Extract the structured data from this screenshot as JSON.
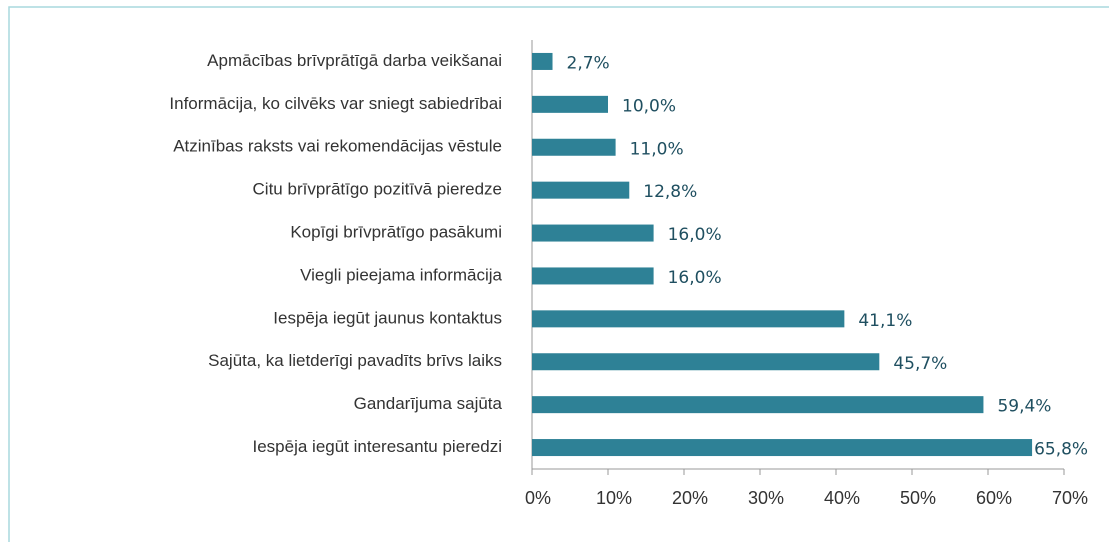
{
  "chart_data": {
    "type": "bar",
    "orientation": "horizontal",
    "color": "#2e8196",
    "categories": [
      "Apmācības brīvprātīgā darba veikšanai",
      "Informācija, ko cilvēks var sniegt sabiedrībai",
      "Atzinības raksts vai rekomendācijas vēstule",
      "Citu brīvprātīgo pozitīvā pieredze",
      "Kopīgi brīvprātīgo pasākumi",
      "Viegli pieejama informācija",
      "Iespēja iegūt jaunus kontaktus",
      "Sajūta, ka lietderīgi pavadīts brīvs laiks",
      "Gandarījuma sajūta",
      "Iespēja iegūt interesantu pieredzi"
    ],
    "values": [
      2.7,
      10.0,
      11.0,
      12.8,
      16.0,
      16.0,
      41.1,
      45.7,
      59.4,
      65.8
    ],
    "value_labels": [
      "2,7%",
      "10,0%",
      "11,0%",
      "12,8%",
      "16,0%",
      "16,0%",
      "41,1%",
      "45,7%",
      "59,4%",
      "65,8%"
    ],
    "xlim": [
      0,
      70
    ],
    "xticks": [
      {
        "value": 0,
        "label": "0%"
      },
      {
        "value": 10,
        "label": "10%"
      },
      {
        "value": 20,
        "label": "20%"
      },
      {
        "value": 30,
        "label": "30%"
      },
      {
        "value": 40,
        "label": "40%"
      },
      {
        "value": 50,
        "label": "50%"
      },
      {
        "value": 60,
        "label": "60%"
      },
      {
        "value": 70,
        "label": "70%"
      }
    ]
  }
}
